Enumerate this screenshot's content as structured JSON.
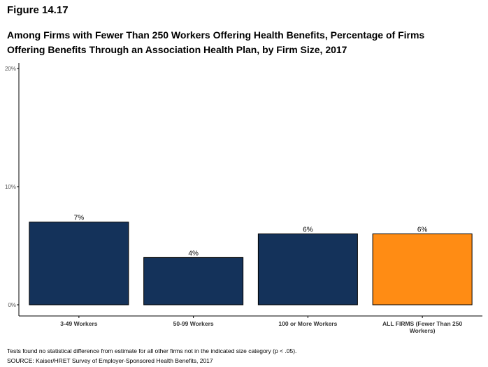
{
  "figure_label": "Figure 14.17",
  "title_line1": "Among Firms with Fewer Than 250 Workers Offering Health Benefits, Percentage of Firms",
  "title_line2": "Offering Benefits Through an Association Health Plan, by Firm Size, 2017",
  "footnote": "Tests found no statistical difference from estimate for all other firms not in the indicated size category (p < .05).",
  "source": "SOURCE: Kaiser/HRET Survey of Employer-Sponsored Health Benefits, 2017",
  "chart_data": {
    "type": "bar",
    "categories": [
      "3-49 Workers",
      "50-99 Workers",
      "100 or More Workers",
      "ALL FIRMS (Fewer Than 250 Workers)"
    ],
    "category_label_lines": [
      [
        "3-49 Workers"
      ],
      [
        "50-99 Workers"
      ],
      [
        "100 or More Workers"
      ],
      [
        "ALL FIRMS (Fewer Than 250",
        "Workers)"
      ]
    ],
    "values": [
      7,
      4,
      6,
      6
    ],
    "data_labels": [
      "7%",
      "4%",
      "6%",
      "6%"
    ],
    "colors": [
      "#14325a",
      "#14325a",
      "#14325a",
      "#ff8c14"
    ],
    "ylim": [
      0,
      20
    ],
    "yticks": [
      0,
      10,
      20
    ],
    "ytick_labels": [
      "0%",
      "10%",
      "20%"
    ],
    "grid": false,
    "xlabel": "",
    "ylabel": ""
  }
}
